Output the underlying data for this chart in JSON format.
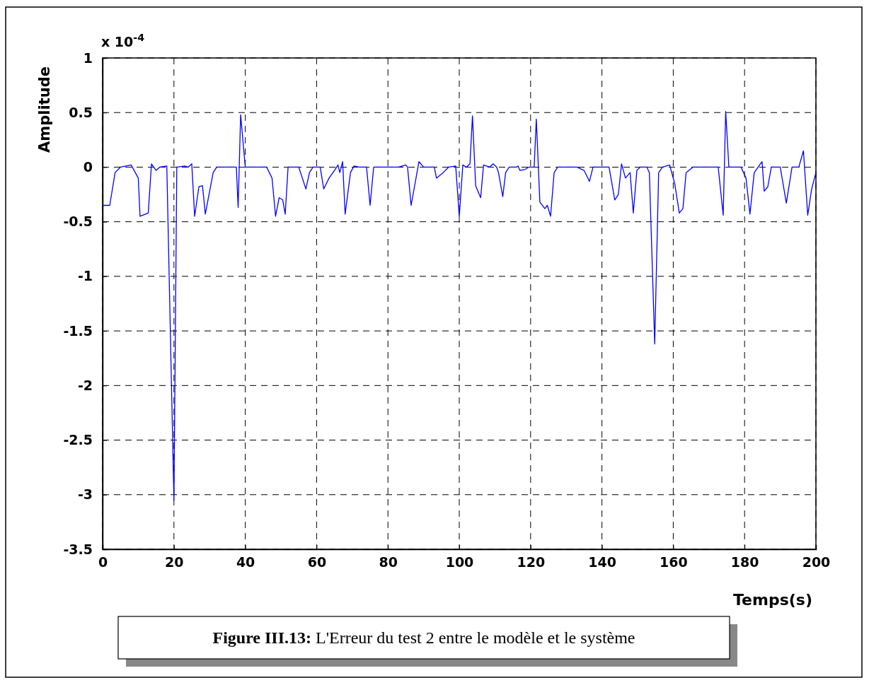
{
  "chart_data": {
    "type": "line",
    "xlabel": "Temps(s)",
    "ylabel": "Amplitude",
    "annotations": [
      "x 10$^{-4}$",
      "Figure III.13: L'Erreur du test 2 entre le modèle et le système"
    ],
    "xlim": [
      0,
      200
    ],
    "xticks": [
      0,
      20,
      40,
      60,
      80,
      100,
      120,
      140,
      160,
      180,
      200
    ],
    "ylim": [
      -3.5,
      1
    ],
    "yticks": [
      -3.5,
      -3,
      -2.5,
      -2,
      -1.5,
      -1,
      -0.5,
      0,
      0.5,
      1
    ],
    "grid": true,
    "line_style": "solid",
    "series": [
      {
        "color": "#0000ff",
        "x": [
          0,
          2,
          3.5,
          5,
          8,
          10,
          10.5,
          12.8,
          13.7,
          15,
          16,
          18,
          20,
          20.8,
          23,
          24,
          25,
          25.8,
          27,
          28,
          28.8,
          31,
          32,
          35,
          37.5,
          38,
          38.7,
          40,
          46,
          47.5,
          48.5,
          49.5,
          50.5,
          51.2,
          52,
          55,
          56,
          57,
          58,
          59,
          61,
          62,
          63.5,
          65,
          66,
          66.5,
          67.3,
          68,
          69.5,
          70.5,
          72,
          74,
          75,
          76,
          83,
          85,
          85.5,
          86.5,
          88.7,
          90,
          93,
          93.6,
          95.5,
          97,
          99,
          100,
          101,
          102,
          103,
          103.7,
          104.6,
          106,
          106.8,
          108.5,
          109.5,
          110.5,
          111,
          112.2,
          113,
          114,
          116,
          116.5,
          117,
          118.5,
          119.5,
          121,
          121.6,
          122.6,
          124,
          124.7,
          125.6,
          126.6,
          127.6,
          133,
          135,
          136.5,
          137.5,
          140,
          142,
          143.6,
          144.6,
          145.5,
          146.6,
          147.9,
          148.8,
          149.8,
          150.7,
          152.6,
          153.3,
          154.8,
          155.9,
          157,
          159,
          160.4,
          161.7,
          162.7,
          163.6,
          165.5,
          172.6,
          174,
          174.7,
          175.6,
          179,
          180.4,
          181.5,
          182.7,
          184.9,
          185.5,
          186.5,
          187.5,
          190,
          191.7,
          193.3,
          195.2,
          196.5,
          197.7,
          198.8,
          200
        ],
        "values": [
          -0.35,
          -0.35,
          -0.05,
          0,
          0.02,
          -0.1,
          -0.45,
          -0.42,
          0.03,
          -0.03,
          0,
          0.01,
          -3.05,
          0,
          0.01,
          0,
          0.03,
          -0.45,
          -0.18,
          -0.17,
          -0.43,
          -0.05,
          0,
          0,
          0,
          -0.37,
          0.48,
          0,
          0,
          -0.1,
          -0.45,
          -0.28,
          -0.3,
          -0.43,
          0,
          0,
          -0.1,
          -0.2,
          -0.05,
          0,
          0,
          -0.2,
          -0.1,
          -0.03,
          0.02,
          -0.05,
          0.05,
          -0.43,
          -0.05,
          0.01,
          0,
          0,
          -0.35,
          0,
          0,
          0.02,
          0,
          -0.35,
          0.05,
          0,
          0,
          -0.1,
          -0.05,
          0,
          0.01,
          -0.45,
          0.02,
          0,
          0.03,
          0.47,
          -0.17,
          -0.28,
          0.02,
          0,
          0.03,
          0,
          -0.05,
          -0.27,
          -0.05,
          0,
          0,
          0.01,
          -0.03,
          -0.02,
          0,
          0,
          0.44,
          -0.32,
          -0.38,
          -0.35,
          -0.45,
          -0.05,
          0,
          0,
          -0.03,
          -0.13,
          0,
          0,
          0,
          -0.3,
          -0.25,
          0.03,
          -0.1,
          -0.05,
          -0.42,
          -0.03,
          0,
          0,
          -0.05,
          -1.62,
          -0.05,
          0,
          0.02,
          -0.15,
          -0.42,
          -0.38,
          -0.05,
          0,
          0,
          -0.44,
          0.51,
          0,
          0,
          -0.1,
          -0.43,
          -0.05,
          0.05,
          -0.22,
          -0.18,
          0,
          0,
          -0.33,
          0,
          0,
          0.15,
          -0.44,
          -0.2,
          -0.05
        ]
      }
    ]
  }
}
